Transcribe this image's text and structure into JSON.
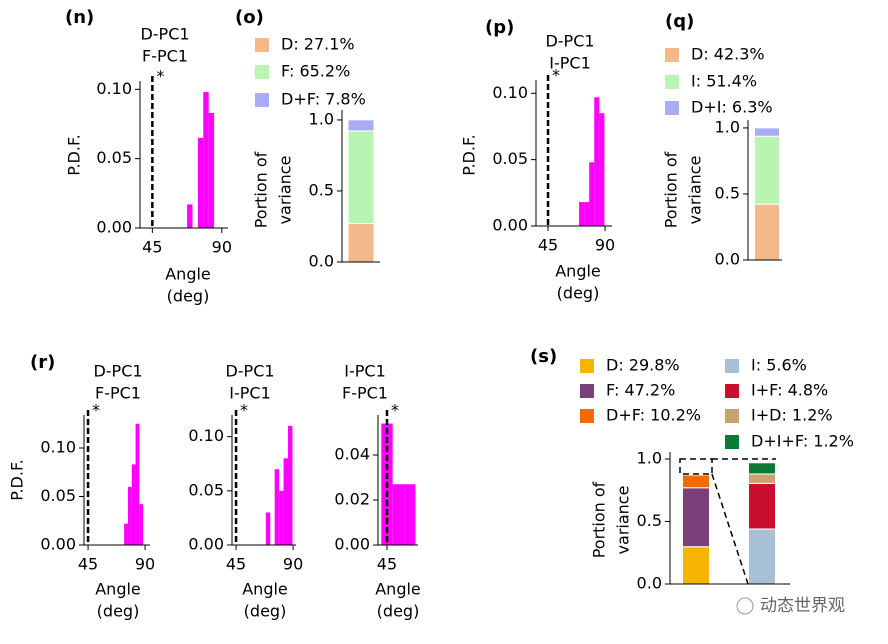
{
  "chart_data": [
    {
      "type": "histogram",
      "panel": "(n)",
      "title": [
        "D-PC1",
        "F-PC1"
      ],
      "ylabel": "P.D.F.",
      "xlabel": [
        "Angle",
        "(deg)"
      ],
      "bins": [
        67.5,
        71,
        74.5,
        78,
        81.5,
        85
      ],
      "counts": [
        0.017,
        0,
        0.065,
        0.098,
        0.083
      ],
      "color": "#ff00ff",
      "xlim": [
        37,
        94
      ],
      "xticks": [
        45,
        90
      ],
      "ylim": [
        0,
        0.106
      ],
      "yticks": [
        {
          "value": 0,
          "label": "0.00"
        },
        0.05,
        {
          "value": 0.1,
          "label": "0.10"
        }
      ],
      "threshold": 45,
      "threshold_label": "*"
    },
    {
      "type": "stacked_bar",
      "panel": "(o)",
      "ylabel": [
        "Portion of",
        "variance"
      ],
      "categories": [
        null
      ],
      "series": [
        {
          "name": "D: 27.1%",
          "color": "#f4b98a",
          "values": [
            0.271
          ]
        },
        {
          "name": "F: 65.2%",
          "color": "#b8f5b3",
          "values": [
            0.652
          ]
        },
        {
          "name": "D+F: 7.8%",
          "color": "#a9abf5",
          "values": [
            0.078
          ]
        }
      ],
      "ylim": [
        0,
        1.07
      ],
      "yticks": [
        {
          "value": 0,
          "label": "0.0"
        },
        0.5,
        {
          "value": 1,
          "label": "1.0"
        }
      ]
    },
    {
      "type": "histogram",
      "panel": "(p)",
      "title": [
        "D-PC1",
        "I-PC1"
      ],
      "ylabel": "P.D.F.",
      "xlabel": [
        "Angle",
        "(deg)"
      ],
      "bins": [
        69.5,
        73.5,
        77.5,
        81.5,
        85.5,
        89.5
      ],
      "counts": [
        0.018,
        0.018,
        0.048,
        0.097,
        0.085
      ],
      "color": "#ff00ff",
      "xlim": [
        35.5,
        95.5
      ],
      "xticks": [
        45,
        90
      ],
      "ylim": [
        0,
        0.11
      ],
      "yticks": [
        {
          "value": 0,
          "label": "0.00"
        },
        0.05,
        {
          "value": 0.1,
          "label": "0.10"
        }
      ],
      "threshold": 45,
      "threshold_label": "*"
    },
    {
      "type": "stacked_bar",
      "panel": "(q)",
      "ylabel": [
        "Portion of",
        "variance"
      ],
      "categories": [
        null
      ],
      "series": [
        {
          "name": "D: 42.3%",
          "color": "#f4b98a",
          "values": [
            0.423
          ]
        },
        {
          "name": "I: 51.4%",
          "color": "#b8f5b3",
          "values": [
            0.514
          ]
        },
        {
          "name": "D+I: 6.3%",
          "color": "#a9abf5",
          "values": [
            0.063
          ]
        }
      ],
      "ylim": [
        0,
        1.06
      ],
      "yticks": [
        {
          "value": 0,
          "label": "0.0"
        },
        0.5,
        {
          "value": 1,
          "label": "1.0"
        }
      ]
    },
    {
      "type": "histogram",
      "panel": "(r)",
      "title": [
        "D-PC1",
        "F-PC1"
      ],
      "ylabel": "P.D.F.",
      "xlabel": [
        "Angle",
        "(deg)"
      ],
      "bins": [
        73.5,
        76.5,
        79.5,
        82.5,
        85.5,
        88.5
      ],
      "counts": [
        0.022,
        0.06,
        0.083,
        0.125,
        0.042
      ],
      "color": "#ff00ff",
      "xlim": [
        41.8,
        93.9
      ],
      "xticks": [
        45,
        90
      ],
      "ylim": [
        0,
        0.134
      ],
      "yticks": [
        {
          "value": 0,
          "label": "0.00"
        },
        0.05,
        {
          "value": 0.1,
          "label": "0.10"
        }
      ],
      "threshold": 45,
      "threshold_label": "*"
    },
    {
      "type": "histogram",
      "title": [
        "D-PC1",
        "I-PC1"
      ],
      "xlabel": [
        "Angle",
        "(deg)"
      ],
      "bins": [
        68.5,
        72,
        75.5,
        79,
        82.5,
        86,
        89.5
      ],
      "counts": [
        0.03,
        0,
        0.07,
        0.05,
        0.08,
        0.11
      ],
      "color": "#ff00ff",
      "xlim": [
        41.8,
        92.3
      ],
      "xticks": [
        45,
        90
      ],
      "ylim": [
        0,
        0.12
      ],
      "yticks": [
        {
          "value": 0,
          "label": "0.00"
        },
        0.05,
        {
          "value": 0.1,
          "label": "0.10"
        }
      ],
      "threshold": 45,
      "threshold_label": "*"
    },
    {
      "type": "histogram",
      "title": [
        "I-PC1",
        "F-PC1"
      ],
      "xlabel": [
        "Angle",
        "(deg)"
      ],
      "bins": [
        40.5,
        49.5,
        58.5,
        67.5
      ],
      "counts": [
        0.054,
        0.027,
        0.027
      ],
      "color": "#ff00ff",
      "xlim": [
        37.9,
        69.5
      ],
      "xticks": [
        45
      ],
      "ylim": [
        0,
        0.0578
      ],
      "yticks": [
        {
          "value": 0,
          "label": "0.00"
        },
        0.02,
        0.04
      ],
      "threshold": 45,
      "threshold_label": "*"
    },
    {
      "type": "stacked_bar",
      "panel": "(s)",
      "ylabel": [
        "Portion of",
        "variance"
      ],
      "categories": [
        null,
        null
      ],
      "series": [
        {
          "name": "D: 29.8%",
          "color": "#f5b400",
          "values": [
            0.298,
            null
          ]
        },
        {
          "name": "F: 47.2%",
          "color": "#7b3f7a",
          "values": [
            0.472,
            null
          ]
        },
        {
          "name": "D+F: 10.2%",
          "color": "#f56a00",
          "values": [
            0.102,
            null
          ]
        },
        {
          "name": "I: 5.6%",
          "color": "#a8bfd8",
          "values": [
            null,
            0.44
          ]
        },
        {
          "name": "I+F: 4.8%",
          "color": "#c8102e",
          "values": [
            null,
            0.365
          ]
        },
        {
          "name": "I+D: 1.2%",
          "color": "#c8a26e",
          "values": [
            null,
            0.075
          ]
        },
        {
          "name": "D+I+F: 1.2%",
          "color": "#0b7a33",
          "values": [
            null,
            0.09
          ]
        }
      ],
      "ylim": [
        0,
        1.056
      ],
      "yticks": [
        {
          "value": 0,
          "label": "0.0"
        },
        0.5,
        {
          "value": 1,
          "label": "1.0"
        }
      ]
    }
  ],
  "watermark": "动态世界观"
}
